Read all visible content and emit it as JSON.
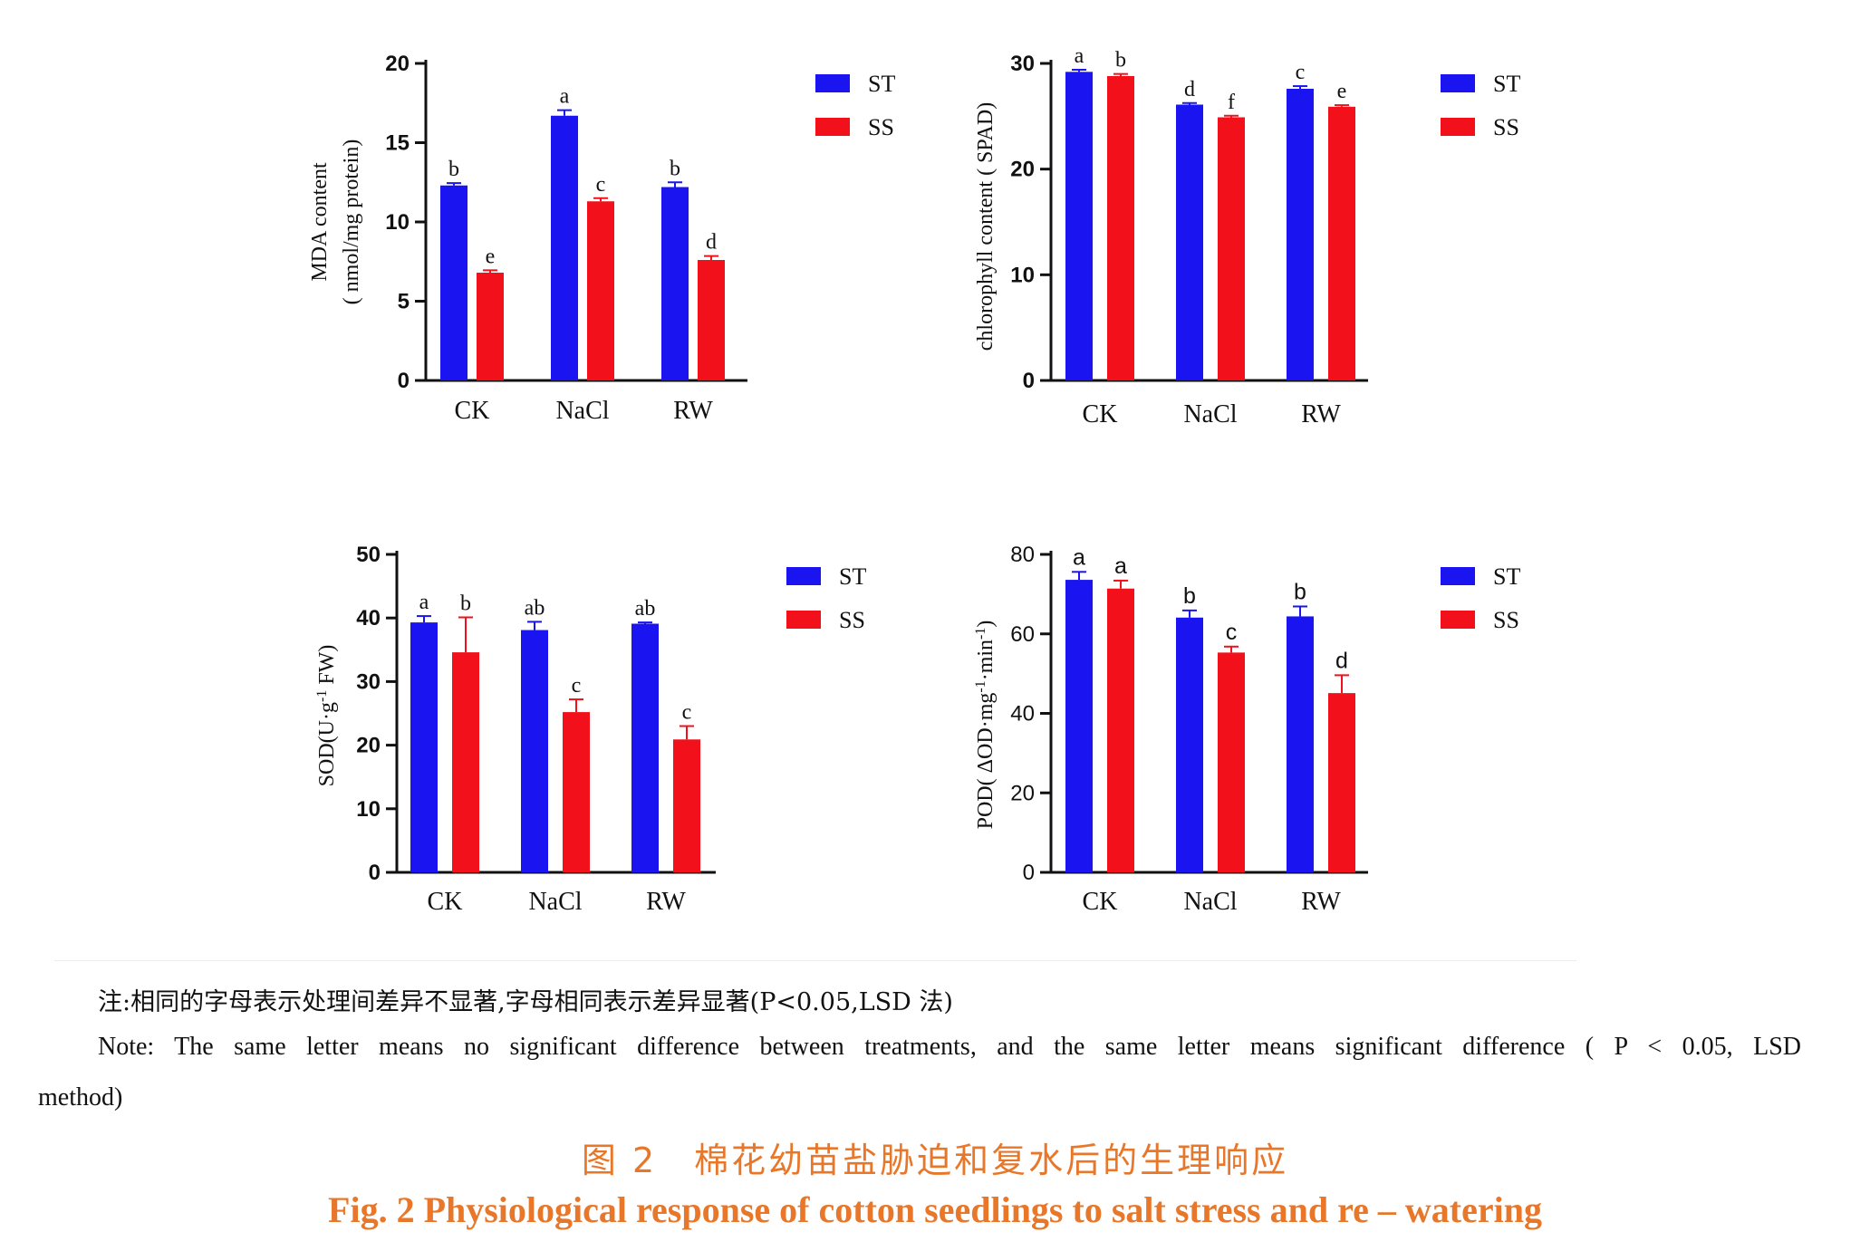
{
  "colors": {
    "ST": "#1a14f0",
    "SS": "#f2101a",
    "caption": "#e8772a"
  },
  "chart_data": [
    {
      "id": "mda",
      "type": "bar",
      "categories": [
        "CK",
        "NaCl",
        "RW"
      ],
      "ylabel_lines": [
        "MDA content",
        "( nmol/mg protein)"
      ],
      "ylim": [
        0,
        20
      ],
      "yticks": [
        0,
        5,
        10,
        15,
        20
      ],
      "ytick_style": "bold",
      "legend": [
        "ST",
        "SS"
      ],
      "series": [
        {
          "name": "ST",
          "values": [
            12.3,
            16.7,
            12.2
          ],
          "errors": [
            0.15,
            0.35,
            0.3
          ],
          "letters": [
            "b",
            "a",
            "b"
          ]
        },
        {
          "name": "SS",
          "values": [
            6.8,
            11.3,
            7.6
          ],
          "errors": [
            0.15,
            0.2,
            0.25
          ],
          "letters": [
            "e",
            "c",
            "d"
          ]
        }
      ]
    },
    {
      "id": "chlorophyll",
      "type": "bar",
      "categories": [
        "CK",
        "NaCl",
        "RW"
      ],
      "ylabel_lines": [
        "chlorophyll content ( SPAD)"
      ],
      "ylim": [
        0,
        30
      ],
      "yticks": [
        0,
        10,
        20,
        30
      ],
      "ytick_style": "bold",
      "legend": [
        "ST",
        "SS"
      ],
      "series": [
        {
          "name": "ST",
          "values": [
            29.2,
            26.1,
            27.6
          ],
          "errors": [
            0.2,
            0.15,
            0.25
          ],
          "letters": [
            "a",
            "d",
            "c"
          ]
        },
        {
          "name": "SS",
          "values": [
            28.8,
            24.9,
            25.9
          ],
          "errors": [
            0.2,
            0.15,
            0.15
          ],
          "letters": [
            "b",
            "f",
            "e"
          ]
        }
      ]
    },
    {
      "id": "sod",
      "type": "bar",
      "categories": [
        "CK",
        "NaCl",
        "RW"
      ],
      "ylabel_lines": [
        "SOD(U·g-1 FW)"
      ],
      "ylim": [
        0,
        50
      ],
      "yticks": [
        0,
        10,
        20,
        30,
        40,
        50
      ],
      "ytick_style": "bold",
      "legend": [
        "ST",
        "SS"
      ],
      "series": [
        {
          "name": "ST",
          "values": [
            39.3,
            38.1,
            39.1
          ],
          "errors": [
            1.0,
            1.3,
            0.2
          ],
          "letters": [
            "a",
            "ab",
            "ab"
          ]
        },
        {
          "name": "SS",
          "values": [
            34.6,
            25.2,
            20.9
          ],
          "errors": [
            5.5,
            2.0,
            2.1
          ],
          "letters": [
            "b",
            "c",
            "c"
          ]
        }
      ]
    },
    {
      "id": "pod",
      "type": "bar",
      "categories": [
        "CK",
        "NaCl",
        "RW"
      ],
      "ylabel_lines": [
        "POD( ΔOD·mg-1·min-1)"
      ],
      "ylim": [
        0,
        80
      ],
      "yticks": [
        0,
        20,
        40,
        60,
        80
      ],
      "ytick_style": "light",
      "legend": [
        "ST",
        "SS"
      ],
      "series": [
        {
          "name": "ST",
          "values": [
            73.6,
            64.1,
            64.4
          ],
          "errors": [
            2.0,
            1.8,
            2.5
          ],
          "letters": [
            "a",
            "b",
            "b"
          ]
        },
        {
          "name": "SS",
          "values": [
            71.4,
            55.3,
            45.1
          ],
          "errors": [
            2.0,
            1.5,
            4.5
          ],
          "letters": [
            "a",
            "c",
            "d"
          ]
        }
      ]
    }
  ],
  "notes": {
    "cn": "注:相同的字母表示处理间差异不显著,字母相同表示差异显著(P<0.05,LSD 法)",
    "en_line1": "Note: The same letter means no significant difference between treatments, and the same letter means significant difference ( P < 0.05, LSD",
    "en_line2": "method)"
  },
  "caption": {
    "cn": "图 2　棉花幼苗盐胁迫和复水后的生理响应",
    "en": "Fig. 2    Physiological response of cotton seedlings to salt stress and re – watering"
  }
}
